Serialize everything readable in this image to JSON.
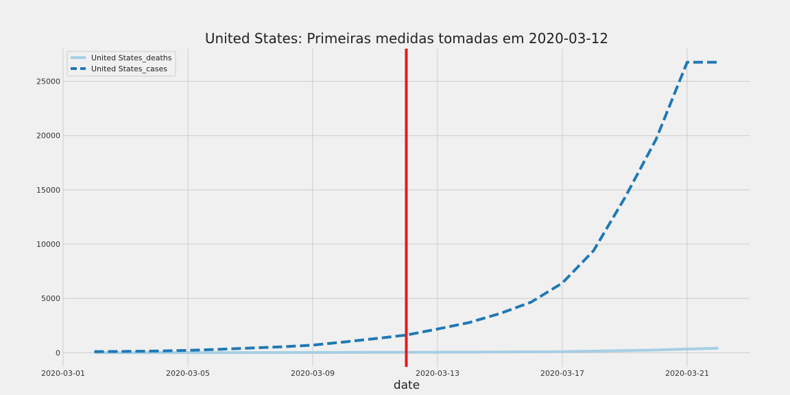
{
  "chart_data": {
    "type": "line",
    "title": "United States: Primeiras medidas tomadas em 2020-03-12",
    "xlabel": "date",
    "ylabel": "",
    "x_tick_labels": [
      "2020-03-01",
      "2020-03-05",
      "2020-03-09",
      "2020-03-13",
      "2020-03-17",
      "2020-03-21"
    ],
    "y_ticks": [
      0,
      5000,
      10000,
      15000,
      20000,
      25000
    ],
    "xlim": [
      "2020-03-01",
      "2020-03-23"
    ],
    "ylim": [
      -1300,
      28000
    ],
    "grid": true,
    "legend_position": "top-left",
    "x": [
      "2020-03-02",
      "2020-03-03",
      "2020-03-04",
      "2020-03-05",
      "2020-03-06",
      "2020-03-07",
      "2020-03-08",
      "2020-03-09",
      "2020-03-10",
      "2020-03-11",
      "2020-03-12",
      "2020-03-13",
      "2020-03-14",
      "2020-03-15",
      "2020-03-16",
      "2020-03-17",
      "2020-03-18",
      "2020-03-19",
      "2020-03-20",
      "2020-03-21",
      "2020-03-22"
    ],
    "series": [
      {
        "name": "United States_deaths",
        "color": "#a6cee3",
        "style": "solid",
        "values": [
          6,
          9,
          11,
          12,
          15,
          19,
          22,
          26,
          31,
          38,
          41,
          49,
          57,
          68,
          86,
          108,
          150,
          206,
          255,
          341,
          419
        ]
      },
      {
        "name": "United States_cases",
        "color": "#1f78b4",
        "style": "dashed",
        "values": [
          100,
          124,
          158,
          221,
          319,
          435,
          541,
          704,
          994,
          1301,
          1630,
          2183,
          2770,
          3613,
          4663,
          6421,
          9400,
          14250,
          19624,
          26747,
          26747
        ]
      }
    ],
    "annotations": [
      {
        "type": "vline",
        "x": "2020-03-12",
        "color": "#e41a1c"
      }
    ]
  }
}
